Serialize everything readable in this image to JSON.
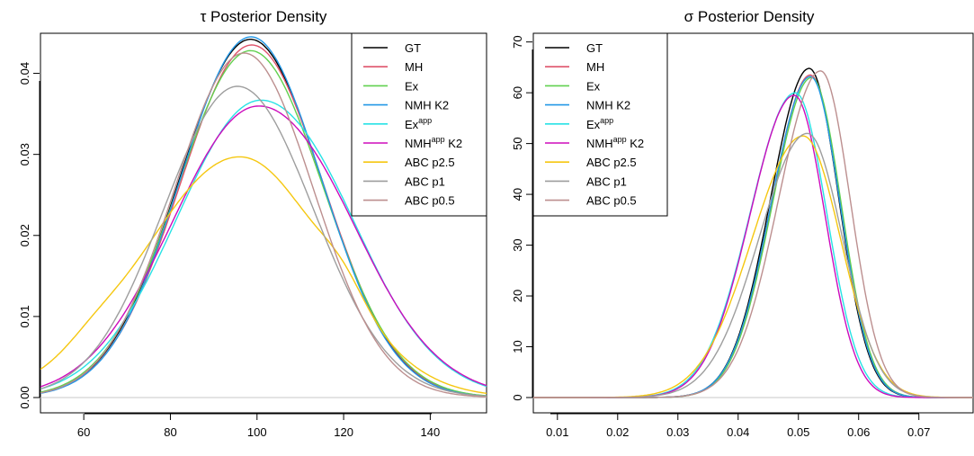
{
  "chart_data": [
    {
      "type": "line",
      "title": "τ Posterior Density",
      "xlim": [
        50,
        153
      ],
      "ylim": [
        0,
        0.0445
      ],
      "xticks": [
        60,
        80,
        100,
        120,
        140
      ],
      "xtick_labels": [
        "60",
        "80",
        "100",
        "120",
        "140"
      ],
      "yticks": [
        0,
        0.01,
        0.02,
        0.03,
        0.04
      ],
      "ytick_labels": [
        "0.00",
        "0.01",
        "0.02",
        "0.03",
        "0.04"
      ],
      "legend_position": "top-right",
      "series": [
        {
          "name": "GT",
          "color": "#000000",
          "peak_x": 98.5,
          "peak_y": 0.0442
        },
        {
          "name": "MH",
          "color": "#DF536B",
          "peak_x": 98.8,
          "peak_y": 0.0435
        },
        {
          "name": "Ex",
          "color": "#61D04F",
          "peak_x": 98.5,
          "peak_y": 0.0428
        },
        {
          "name": "NMH K2",
          "color": "#2297E6",
          "peak_x": 98.6,
          "peak_y": 0.0445
        },
        {
          "name": "Ex",
          "sup": "app",
          "color": "#28E2E5",
          "peak_x": 100.5,
          "peak_y": 0.0365
        },
        {
          "name": "NMH",
          "sup": "app",
          "suffix": " K2",
          "color": "#CD0BBC",
          "peak_x": 100.0,
          "peak_y": 0.0358
        },
        {
          "name": "ABC p2.5",
          "color": "#F5C710",
          "peak_x": 96.0,
          "peak_y": 0.0297
        },
        {
          "name": "ABC p1",
          "color": "#9E9E9E",
          "peak_x": 95.5,
          "peak_y": 0.0384
        },
        {
          "name": "ABC p0.5",
          "color": "#BC8F8F",
          "peak_x": 97.0,
          "peak_y": 0.0425
        }
      ]
    },
    {
      "type": "line",
      "title": "σ Posterior Density",
      "xlim": [
        0.006,
        0.079
      ],
      "ylim": [
        0,
        71
      ],
      "xticks": [
        0.01,
        0.02,
        0.03,
        0.04,
        0.05,
        0.06,
        0.07
      ],
      "xtick_labels": [
        "0.01",
        "0.02",
        "0.03",
        "0.04",
        "0.05",
        "0.06",
        "0.07"
      ],
      "yticks": [
        0,
        10,
        20,
        30,
        40,
        50,
        60,
        70
      ],
      "ytick_labels": [
        "0",
        "10",
        "20",
        "30",
        "40",
        "50",
        "60",
        "70"
      ],
      "legend_position": "top-left",
      "series": [
        {
          "name": "GT",
          "color": "#000000",
          "peak_x": 0.0518,
          "peak_y": 64.8
        },
        {
          "name": "MH",
          "color": "#DF536B",
          "peak_x": 0.052,
          "peak_y": 63.5
        },
        {
          "name": "Ex",
          "color": "#61D04F",
          "peak_x": 0.0522,
          "peak_y": 63.0
        },
        {
          "name": "NMH K2",
          "color": "#2297E6",
          "peak_x": 0.052,
          "peak_y": 63.2
        },
        {
          "name": "Ex",
          "sup": "app",
          "color": "#28E2E5",
          "peak_x": 0.0495,
          "peak_y": 60.0
        },
        {
          "name": "NMH",
          "sup": "app",
          "suffix": " K2",
          "color": "#CD0BBC",
          "peak_x": 0.0493,
          "peak_y": 59.5
        },
        {
          "name": "ABC p2.5",
          "color": "#F5C710",
          "peak_x": 0.0508,
          "peak_y": 51.5
        },
        {
          "name": "ABC p1",
          "color": "#9E9E9E",
          "peak_x": 0.0515,
          "peak_y": 52.0
        },
        {
          "name": "ABC p0.5",
          "color": "#BC8F8F",
          "peak_x": 0.0537,
          "peak_y": 64.3
        }
      ]
    }
  ]
}
